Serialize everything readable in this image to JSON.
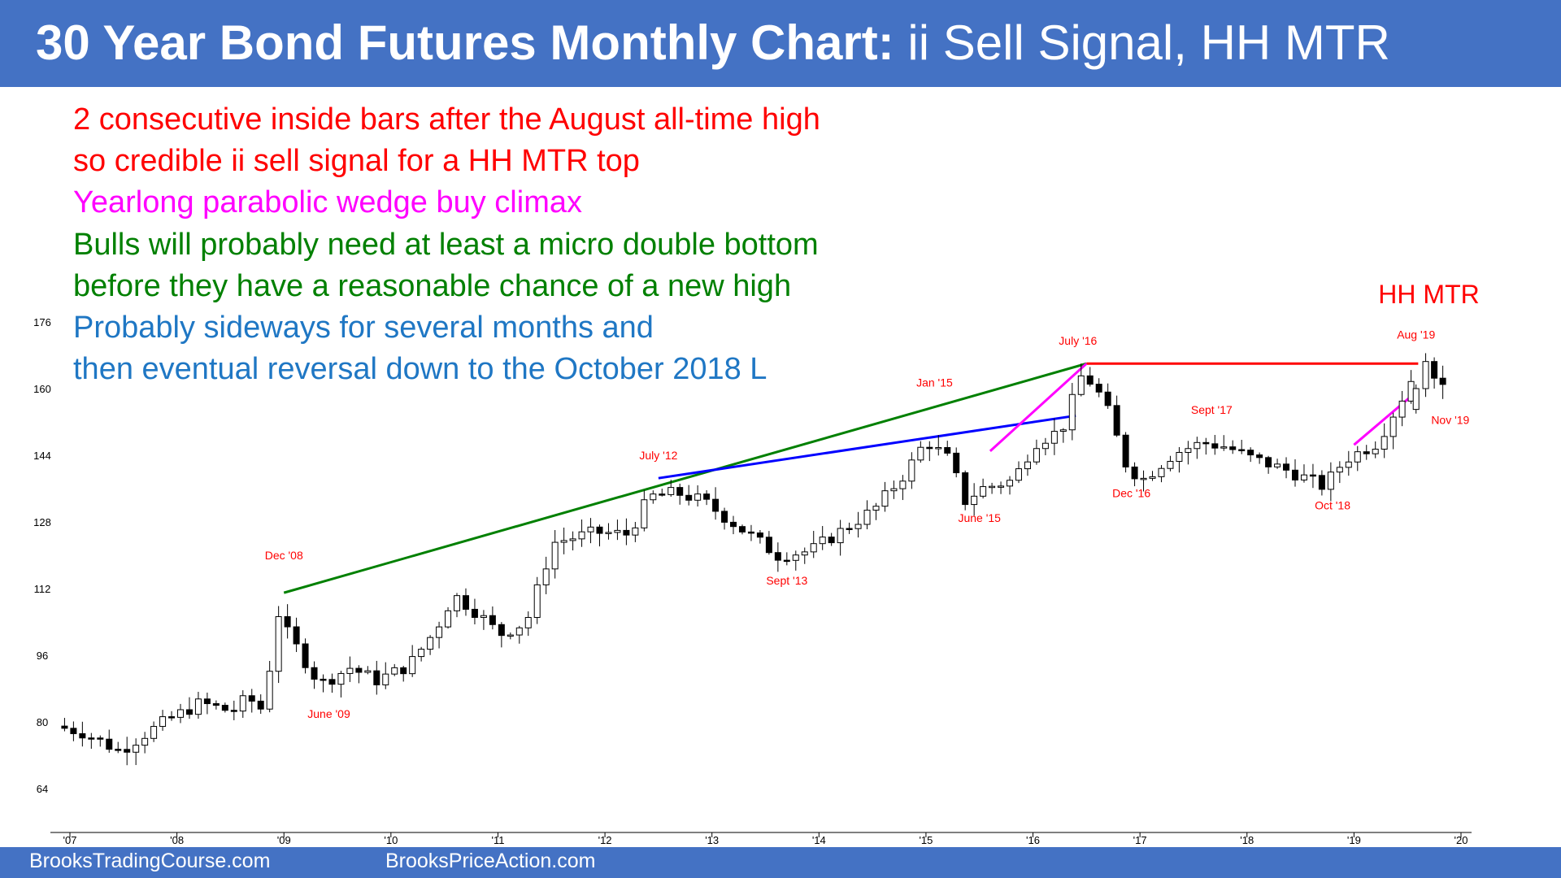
{
  "title": {
    "bold": "30 Year Bond Futures Monthly Chart:",
    "rest": " ii Sell Signal, HH MTR"
  },
  "notes": [
    {
      "text": "2 consecutive inside bars after the August all-time high",
      "color": "#ff0000"
    },
    {
      "text": "so credible ii sell signal for a HH MTR top",
      "color": "#ff0000"
    },
    {
      "text": "Yearlong parabolic wedge buy climax",
      "color": "#ff00ff"
    },
    {
      "text": "Bulls will probably need at least a micro double bottom",
      "color": "#008000"
    },
    {
      "text": "before they have a reasonable chance of a new high",
      "color": "#008000"
    },
    {
      "text": "Probably sideways for several months and",
      "color": "#1f77c4"
    },
    {
      "text": "then eventual reversal down to the October 2018 L",
      "color": "#1f77c4"
    }
  ],
  "footer": {
    "left": "BrooksTradingCourse.com",
    "right": "BrooksPriceAction.com"
  },
  "chart_data": {
    "type": "candlestick",
    "xlim": [
      2007.0,
      2020.0
    ],
    "ylim": [
      64,
      176
    ],
    "y_ticks": [
      "64",
      "80",
      "96",
      "112",
      "128",
      "144",
      "160",
      "176"
    ],
    "x_ticks": [
      {
        "x": 2007,
        "label": "'07"
      },
      {
        "x": 2008,
        "label": "'08"
      },
      {
        "x": 2009,
        "label": "'09"
      },
      {
        "x": 2010,
        "label": "'10"
      },
      {
        "x": 2011,
        "label": "'11"
      },
      {
        "x": 2012,
        "label": "'12"
      },
      {
        "x": 2013,
        "label": "'13"
      },
      {
        "x": 2014,
        "label": "'14"
      },
      {
        "x": 2015,
        "label": "'15"
      },
      {
        "x": 2016,
        "label": "'16"
      },
      {
        "x": 2017,
        "label": "'17"
      },
      {
        "x": 2018,
        "label": "'18"
      },
      {
        "x": 2019,
        "label": "'19"
      },
      {
        "x": 2020,
        "label": "'20"
      }
    ],
    "colors": {
      "up": "#ffffff",
      "down": "#000000",
      "label": "#ff0000"
    },
    "anchors": [
      [
        2006.95,
        79
      ],
      [
        2007.2,
        77.5
      ],
      [
        2007.55,
        73
      ],
      [
        2007.75,
        76.5
      ],
      [
        2008.0,
        80.5
      ],
      [
        2008.3,
        84.5
      ],
      [
        2008.6,
        82.5
      ],
      [
        2008.75,
        86
      ],
      [
        2008.85,
        83
      ],
      [
        2008.92,
        84
      ],
      [
        2009.0,
        108
      ],
      [
        2009.1,
        102
      ],
      [
        2009.42,
        89
      ],
      [
        2009.7,
        93
      ],
      [
        2009.95,
        90
      ],
      [
        2010.25,
        93.5
      ],
      [
        2010.5,
        102
      ],
      [
        2010.67,
        110.5
      ],
      [
        2010.9,
        106
      ],
      [
        2011.1,
        101
      ],
      [
        2011.35,
        104
      ],
      [
        2011.6,
        123
      ],
      [
        2011.75,
        124
      ],
      [
        2012.0,
        125.5
      ],
      [
        2012.3,
        125
      ],
      [
        2012.5,
        134
      ],
      [
        2012.75,
        135
      ],
      [
        2013.0,
        133
      ],
      [
        2013.4,
        125.5
      ],
      [
        2013.7,
        120
      ],
      [
        2014.0,
        121
      ],
      [
        2014.3,
        126
      ],
      [
        2014.6,
        131
      ],
      [
        2014.9,
        140
      ],
      [
        2015.08,
        147.5
      ],
      [
        2015.3,
        143
      ],
      [
        2015.45,
        133
      ],
      [
        2015.6,
        136
      ],
      [
        2015.9,
        138
      ],
      [
        2016.1,
        147
      ],
      [
        2016.35,
        150
      ],
      [
        2016.55,
        164
      ],
      [
        2016.75,
        157
      ],
      [
        2016.95,
        142
      ],
      [
        2017.1,
        138
      ],
      [
        2017.4,
        144.5
      ],
      [
        2017.67,
        147
      ],
      [
        2017.9,
        146
      ],
      [
        2018.1,
        143.5
      ],
      [
        2018.5,
        140
      ],
      [
        2018.8,
        136.5
      ],
      [
        2019.0,
        143
      ],
      [
        2019.3,
        147
      ],
      [
        2019.58,
        160
      ],
      [
        2019.67,
        165
      ],
      [
        2019.75,
        164
      ],
      [
        2019.83,
        161
      ]
    ],
    "candles": [
      {
        "x": 2019.58,
        "o": 155,
        "h": 161,
        "l": 154,
        "c": 160
      },
      {
        "x": 2019.67,
        "o": 160,
        "h": 168.5,
        "l": 158,
        "c": 166.5
      },
      {
        "x": 2019.75,
        "o": 166.5,
        "h": 167.5,
        "l": 160,
        "c": 162.5
      },
      {
        "x": 2019.83,
        "o": 162.5,
        "h": 165.5,
        "l": 157.5,
        "c": 161
      }
    ],
    "labels": [
      {
        "text": "Dec '08",
        "x": 2009.0,
        "y": 119
      },
      {
        "text": "June '09",
        "x": 2009.42,
        "y": 81
      },
      {
        "text": "July '12",
        "x": 2012.5,
        "y": 143
      },
      {
        "text": "Sept '13",
        "x": 2013.7,
        "y": 113
      },
      {
        "text": "Jan '15",
        "x": 2015.08,
        "y": 160.5
      },
      {
        "text": "June '15",
        "x": 2015.5,
        "y": 128
      },
      {
        "text": "July '16",
        "x": 2016.42,
        "y": 170.5
      },
      {
        "text": "Dec '16",
        "x": 2016.92,
        "y": 134
      },
      {
        "text": "Sept '17",
        "x": 2017.67,
        "y": 154
      },
      {
        "text": "Oct '18",
        "x": 2018.8,
        "y": 131
      },
      {
        "text": "Aug '19",
        "x": 2019.58,
        "y": 172
      },
      {
        "text": "Nov '19",
        "x": 2019.9,
        "y": 151.5
      }
    ],
    "hh_label": {
      "text": "HH MTR",
      "x": 2019.7,
      "y": 180.5
    },
    "lines": [
      {
        "name": "green-trend-line",
        "color": "#008000",
        "points": [
          [
            2009.0,
            111
          ],
          [
            2016.5,
            166
          ]
        ]
      },
      {
        "name": "blue-trend-line",
        "color": "#0000ff",
        "points": [
          [
            2012.5,
            138.5
          ],
          [
            2016.4,
            153.5
          ]
        ]
      },
      {
        "name": "red-double-top-line",
        "color": "#ff0000",
        "points": [
          [
            2016.5,
            166
          ],
          [
            2019.6,
            166
          ]
        ]
      },
      {
        "name": "magenta-wedge-line-2016",
        "color": "#ff00ff",
        "points": [
          [
            2015.6,
            145
          ],
          [
            2016.5,
            166
          ]
        ]
      },
      {
        "name": "magenta-wedge-line-2019",
        "color": "#ff00ff",
        "points": [
          [
            2019.0,
            146.5
          ],
          [
            2019.55,
            158.5
          ]
        ]
      }
    ]
  }
}
